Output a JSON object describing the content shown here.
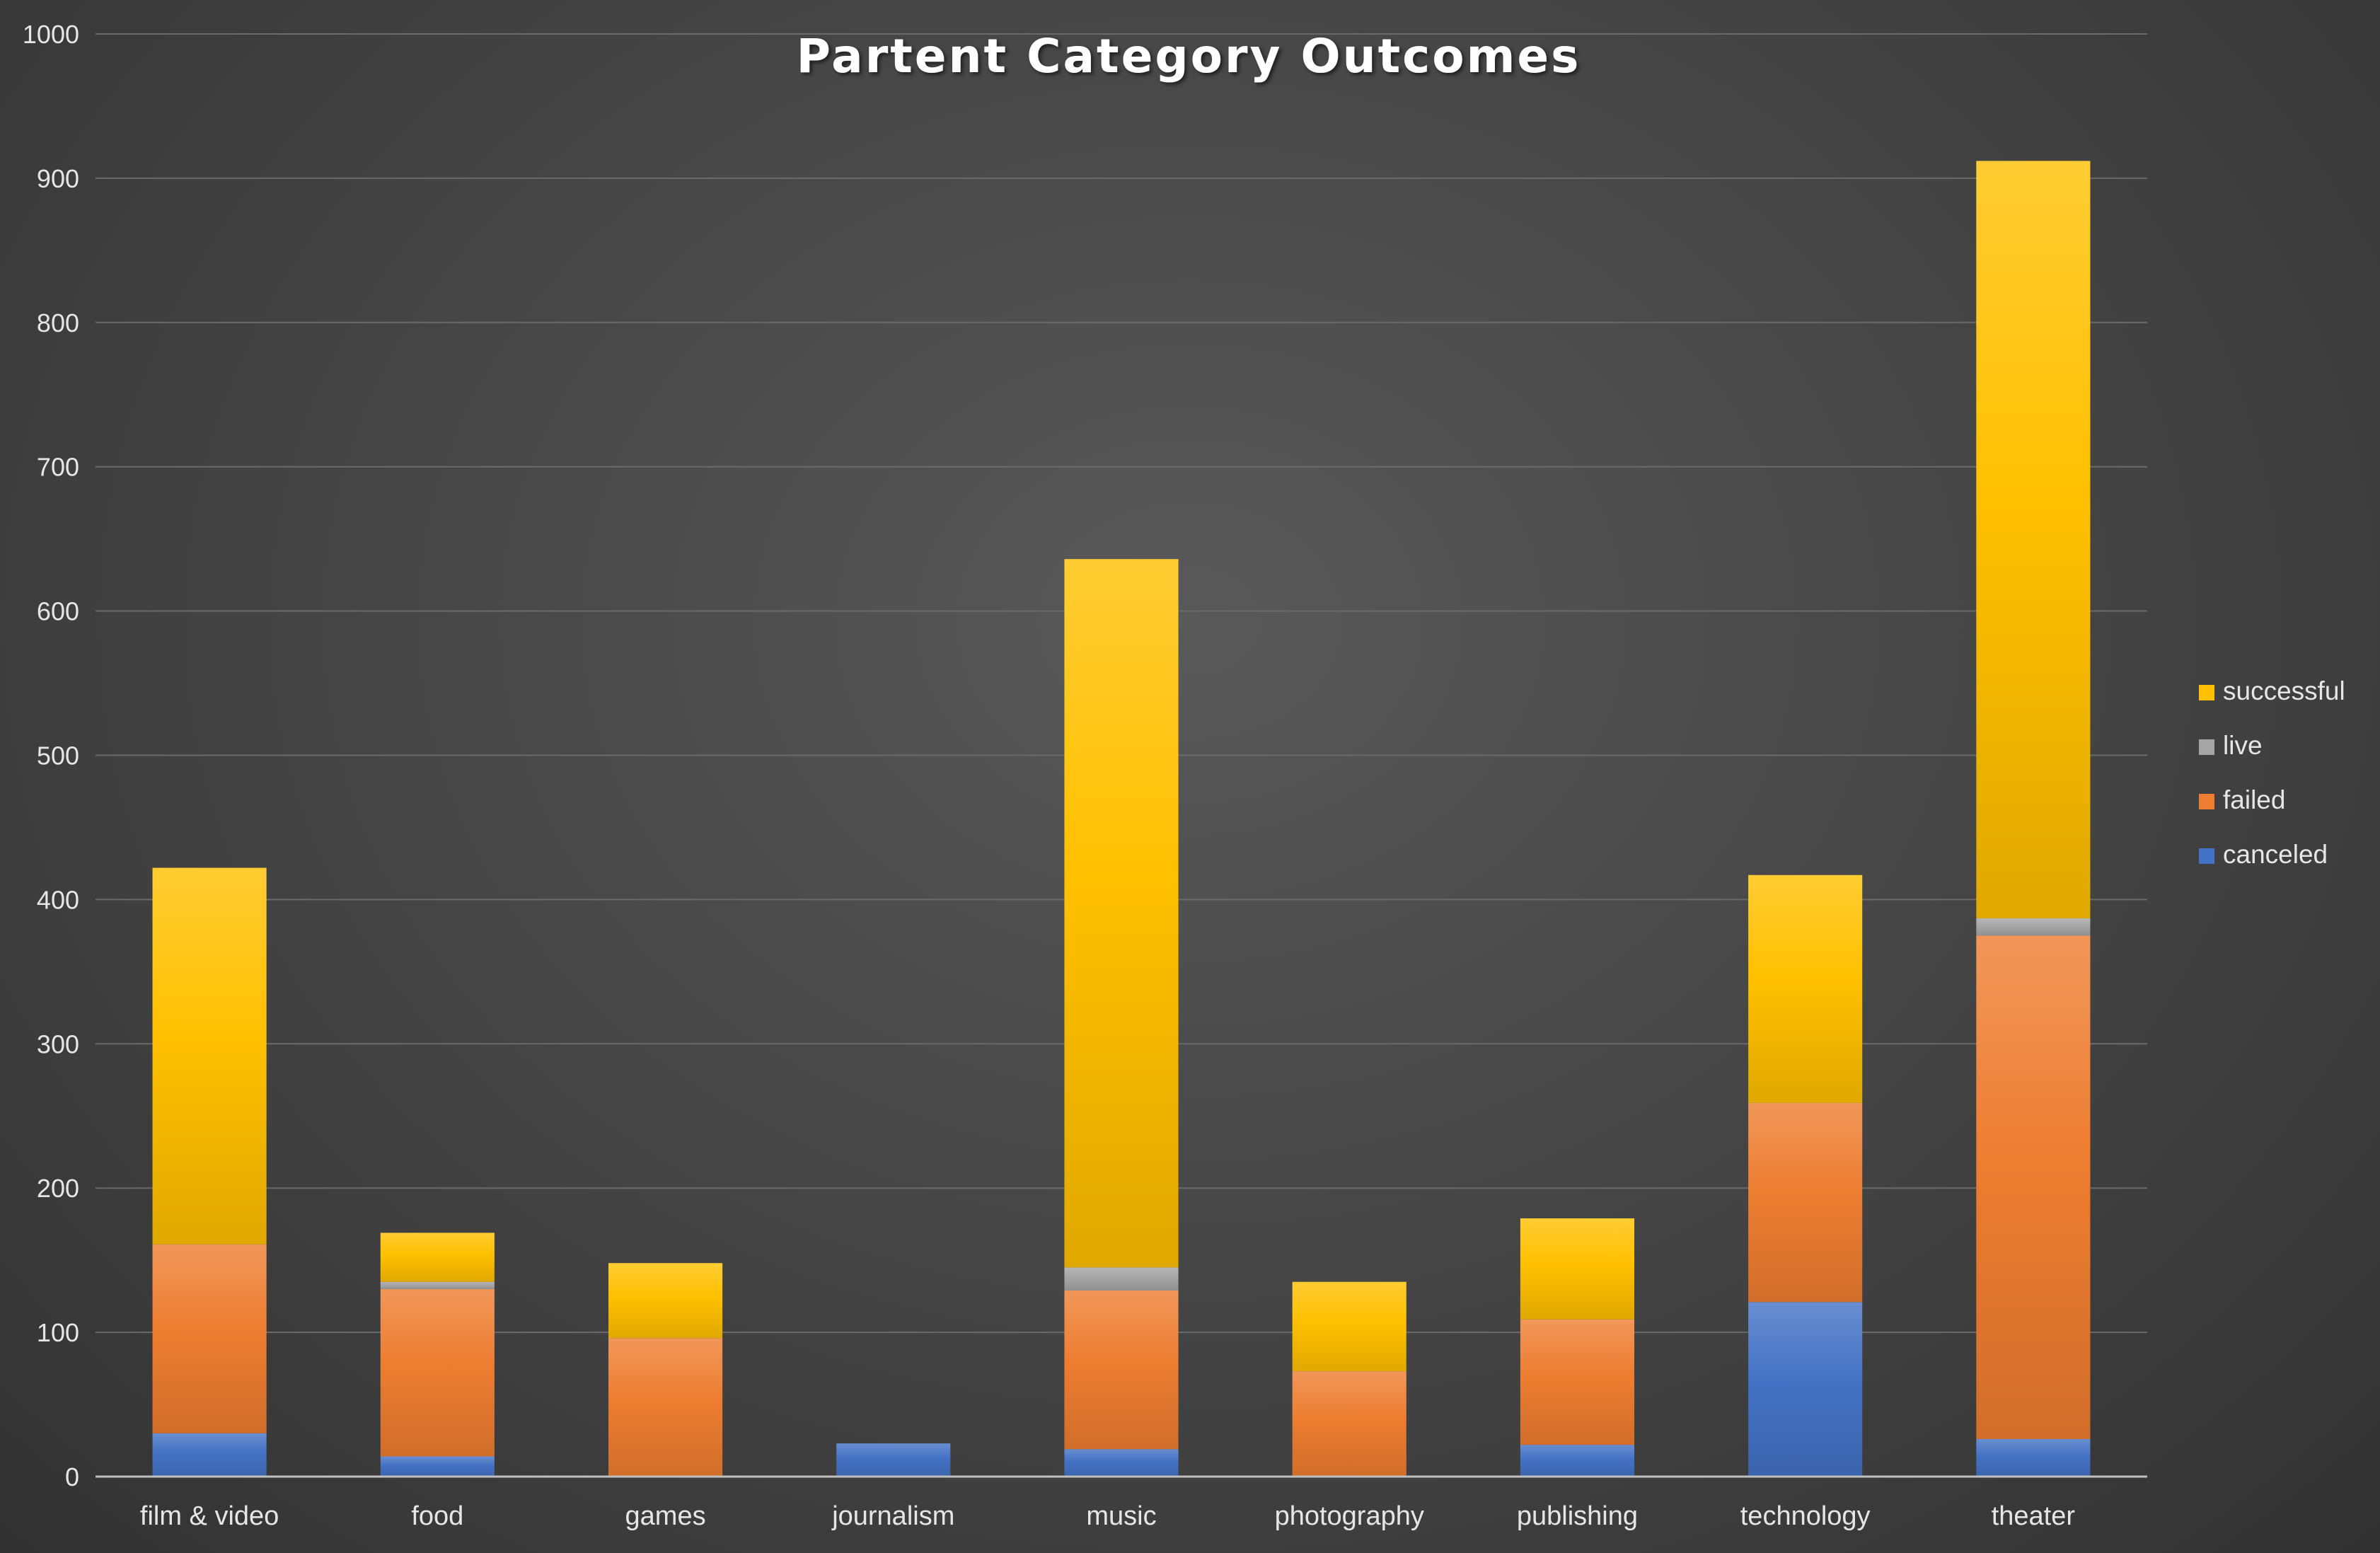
{
  "chart_data": {
    "type": "bar",
    "stacked": true,
    "title": "Partent Category Outcomes",
    "xlabel": "",
    "ylabel": "",
    "ylim": [
      0,
      1000
    ],
    "yticks": [
      0,
      100,
      200,
      300,
      400,
      500,
      600,
      700,
      800,
      900,
      1000
    ],
    "grid": true,
    "legend_position": "right",
    "categories": [
      "film & video",
      "food",
      "games",
      "journalism",
      "music",
      "photography",
      "publishing",
      "technology",
      "theater"
    ],
    "series": [
      {
        "name": "canceled",
        "color": "#4472c4",
        "values": [
          30,
          14,
          0,
          23,
          19,
          0,
          22,
          121,
          26
        ]
      },
      {
        "name": "failed",
        "color": "#ed7d31",
        "values": [
          131,
          116,
          96,
          0,
          110,
          73,
          87,
          138,
          349
        ]
      },
      {
        "name": "live",
        "color": "#a5a5a5",
        "values": [
          0,
          5,
          0,
          0,
          16,
          0,
          0,
          0,
          12
        ]
      },
      {
        "name": "successful",
        "color": "#ffc000",
        "values": [
          261,
          34,
          52,
          0,
          491,
          62,
          70,
          158,
          525
        ]
      }
    ],
    "legend_order": [
      "successful",
      "live",
      "failed",
      "canceled"
    ]
  }
}
